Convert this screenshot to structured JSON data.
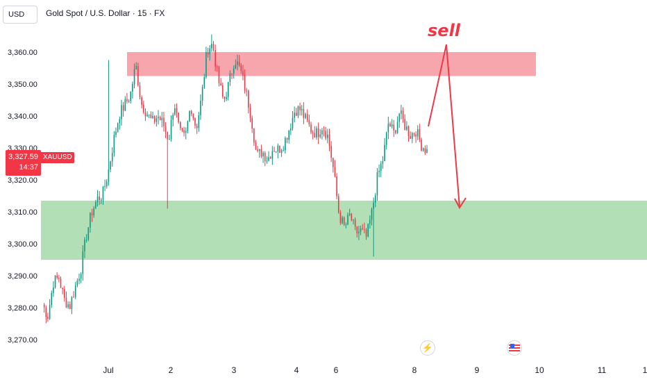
{
  "header": {
    "currency": "USD",
    "symbol_title": "Gold Spot / U.S. Dollar · 15 · FX"
  },
  "price_badge": {
    "price": "3,327.59",
    "countdown": "14:37",
    "ticker": "XAUUSD",
    "color": "#f23645"
  },
  "annotation": {
    "text": "sell",
    "color": "#f23645"
  },
  "events": [
    {
      "icon": "lightning-icon"
    },
    {
      "icon": "us-flag-icon"
    }
  ],
  "chart_data": {
    "type": "candlestick",
    "symbol": "XAUUSD",
    "ylim": [
      3265,
      3370
    ],
    "y_ticks": [
      "3,270.00",
      "3,280.00",
      "3,290.00",
      "3,300.00",
      "3,310.00",
      "3,320.00",
      "3,330.00",
      "3,340.00",
      "3,350.00",
      "3,360.00"
    ],
    "y_tick_values": [
      3270,
      3280,
      3290,
      3300,
      3310,
      3320,
      3330,
      3340,
      3350,
      3360
    ],
    "x_ticks": [
      "Jul",
      "2",
      "3",
      "4",
      "6",
      "8",
      "9",
      "10",
      "11",
      "1"
    ],
    "zones": [
      {
        "kind": "resistance",
        "from": 3352.5,
        "to": 3360,
        "color": "#f7a6ad"
      },
      {
        "kind": "support",
        "from": 3295,
        "to": 3313.5,
        "color": "#b2dfb5"
      }
    ],
    "anchor_points": [
      [
        3279,
        3283
      ],
      [
        3276,
        3279
      ],
      [
        3282,
        3294
      ],
      [
        3283,
        3296
      ],
      [
        3275,
        3290
      ],
      [
        3279,
        3282
      ],
      [
        3285,
        3288
      ],
      [
        3291,
        3293
      ],
      [
        3300,
        3305
      ],
      [
        3308,
        3312
      ],
      [
        3313,
        3315
      ],
      [
        3315,
        3316
      ],
      [
        3322,
        3323
      ],
      [
        3332,
        3333
      ],
      [
        3340,
        3341
      ],
      [
        3342,
        3345
      ],
      [
        3346,
        3347
      ],
      [
        3355,
        3357
      ],
      [
        3343,
        3345
      ],
      [
        3340,
        3342
      ],
      [
        3337,
        3339
      ],
      [
        3339,
        3341
      ],
      [
        3336,
        3339
      ],
      [
        3331,
        3334
      ],
      [
        3343,
        3346
      ],
      [
        3333,
        3336
      ],
      [
        3331,
        3335
      ],
      [
        3342,
        3345
      ],
      [
        3335,
        3337
      ],
      [
        3345,
        3347
      ],
      [
        3360,
        3362
      ],
      [
        3361,
        3364
      ],
      [
        3350,
        3353
      ],
      [
        3343,
        3346
      ],
      [
        3349,
        3352
      ],
      [
        3356,
        3360
      ],
      [
        3353,
        3356
      ],
      [
        3346,
        3350
      ],
      [
        3338,
        3342
      ],
      [
        3325,
        3330
      ],
      [
        3327,
        3331
      ],
      [
        3325,
        3328
      ],
      [
        3329,
        3331
      ],
      [
        3328,
        3331
      ],
      [
        3330,
        3333
      ],
      [
        3335,
        3338
      ],
      [
        3340,
        3344
      ],
      [
        3341,
        3343
      ],
      [
        3337,
        3340
      ],
      [
        3335,
        3336
      ],
      [
        3334,
        3335
      ],
      [
        3336,
        3338
      ],
      [
        3331,
        3336
      ],
      [
        3321,
        3325
      ],
      [
        3307,
        3311
      ],
      [
        3304,
        3306
      ],
      [
        3308,
        3310
      ],
      [
        3301,
        3306
      ],
      [
        3303,
        3305
      ],
      [
        3301,
        3303
      ],
      [
        3308,
        3312
      ],
      [
        3320,
        3322
      ],
      [
        3325,
        3328
      ],
      [
        3337,
        3339
      ],
      [
        3333,
        3336
      ],
      [
        3339,
        3343
      ],
      [
        3336,
        3338
      ],
      [
        3333,
        3335
      ],
      [
        3334,
        3337
      ],
      [
        3330,
        3332
      ],
      [
        3328,
        3330
      ]
    ]
  }
}
